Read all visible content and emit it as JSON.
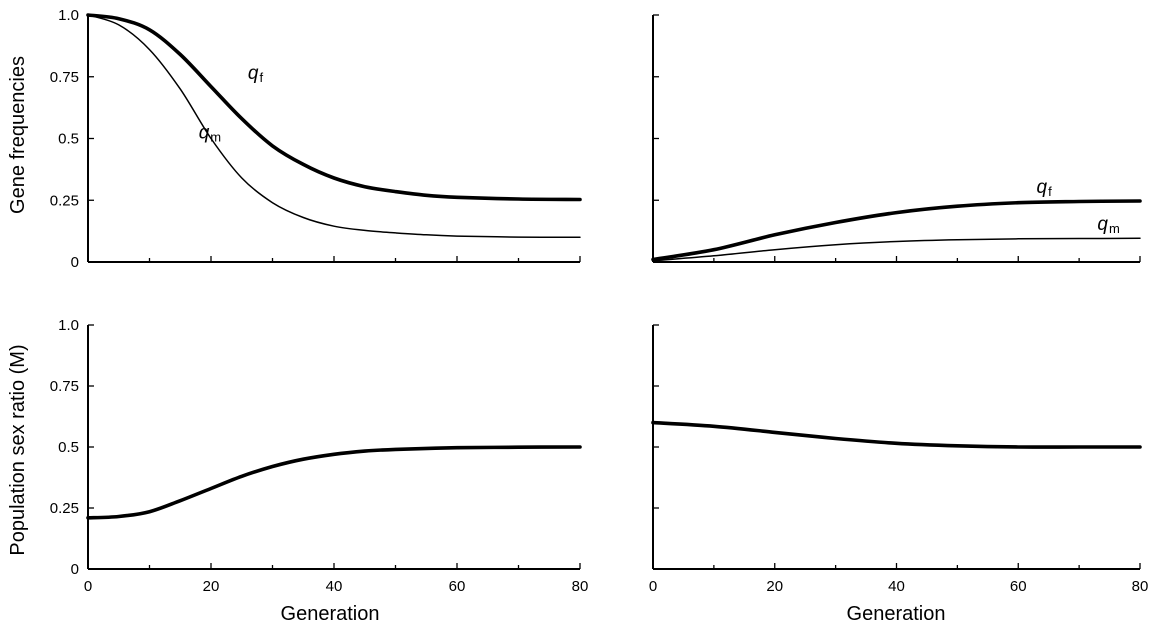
{
  "figure": {
    "ylabel_top": "Gene frequencies",
    "ylabel_bottom": "Population sex ratio (M)",
    "xlabel": "Generation"
  },
  "chart_data": [
    {
      "type": "line",
      "panel": "top-left",
      "title": "",
      "xlabel": "",
      "ylabel": "Gene frequencies",
      "xlim": [
        0,
        80
      ],
      "ylim": [
        0,
        1.0
      ],
      "x_ticks": [
        0,
        20,
        40,
        60,
        80
      ],
      "y_ticks": [
        "0",
        "0.25",
        "0.5",
        "0.75",
        "1.0"
      ],
      "show_x_tick_labels": false,
      "show_y_tick_labels": true,
      "grid": false,
      "series": [
        {
          "name": "q_f",
          "label_main": "q",
          "label_sub": "f",
          "style": "thick",
          "label_at": [
            26,
            0.74
          ],
          "points": [
            [
              0,
              1.0
            ],
            [
              5,
              0.985
            ],
            [
              10,
              0.94
            ],
            [
              15,
              0.84
            ],
            [
              20,
              0.71
            ],
            [
              25,
              0.58
            ],
            [
              30,
              0.47
            ],
            [
              35,
              0.395
            ],
            [
              40,
              0.34
            ],
            [
              45,
              0.305
            ],
            [
              50,
              0.285
            ],
            [
              55,
              0.27
            ],
            [
              60,
              0.262
            ],
            [
              70,
              0.255
            ],
            [
              80,
              0.253
            ]
          ]
        },
        {
          "name": "q_m",
          "label_main": "q",
          "label_sub": "m",
          "style": "thin",
          "label_at": [
            18,
            0.5
          ],
          "points": [
            [
              0,
              1.0
            ],
            [
              5,
              0.96
            ],
            [
              10,
              0.86
            ],
            [
              15,
              0.7
            ],
            [
              20,
              0.5
            ],
            [
              25,
              0.34
            ],
            [
              30,
              0.24
            ],
            [
              35,
              0.18
            ],
            [
              40,
              0.145
            ],
            [
              45,
              0.128
            ],
            [
              50,
              0.118
            ],
            [
              55,
              0.11
            ],
            [
              60,
              0.105
            ],
            [
              70,
              0.101
            ],
            [
              80,
              0.1
            ]
          ]
        }
      ]
    },
    {
      "type": "line",
      "panel": "top-right",
      "title": "",
      "xlabel": "",
      "ylabel": "",
      "xlim": [
        0,
        80
      ],
      "ylim": [
        0,
        1.0
      ],
      "x_ticks": [
        0,
        20,
        40,
        60,
        80
      ],
      "y_ticks": [
        "0",
        "0.25",
        "0.5",
        "0.75",
        "1.0"
      ],
      "show_x_tick_labels": false,
      "show_y_tick_labels": false,
      "grid": false,
      "series": [
        {
          "name": "q_f",
          "label_main": "q",
          "label_sub": "f",
          "style": "thick",
          "label_at": [
            63,
            0.28
          ],
          "points": [
            [
              0,
              0.01
            ],
            [
              10,
              0.05
            ],
            [
              20,
              0.11
            ],
            [
              30,
              0.16
            ],
            [
              40,
              0.2
            ],
            [
              50,
              0.226
            ],
            [
              60,
              0.24
            ],
            [
              70,
              0.245
            ],
            [
              80,
              0.247
            ]
          ]
        },
        {
          "name": "q_m",
          "label_main": "q",
          "label_sub": "m",
          "style": "thin",
          "label_at": [
            73,
            0.13
          ],
          "points": [
            [
              0,
              0.005
            ],
            [
              10,
              0.025
            ],
            [
              20,
              0.05
            ],
            [
              30,
              0.07
            ],
            [
              40,
              0.083
            ],
            [
              50,
              0.09
            ],
            [
              60,
              0.094
            ],
            [
              70,
              0.095
            ],
            [
              80,
              0.096
            ]
          ]
        }
      ]
    },
    {
      "type": "line",
      "panel": "bottom-left",
      "title": "",
      "xlabel": "Generation",
      "ylabel": "Population sex ratio (M)",
      "xlim": [
        0,
        80
      ],
      "ylim": [
        0,
        1.0
      ],
      "x_ticks": [
        "0",
        "20",
        "40",
        "60",
        "80"
      ],
      "y_ticks": [
        "0",
        "0.25",
        "0.5",
        "0.75",
        "1.0"
      ],
      "show_x_tick_labels": true,
      "show_y_tick_labels": true,
      "grid": false,
      "series": [
        {
          "name": "M",
          "style": "thick",
          "points": [
            [
              0,
              0.21
            ],
            [
              5,
              0.215
            ],
            [
              10,
              0.235
            ],
            [
              15,
              0.28
            ],
            [
              20,
              0.33
            ],
            [
              25,
              0.38
            ],
            [
              30,
              0.42
            ],
            [
              35,
              0.45
            ],
            [
              40,
              0.47
            ],
            [
              45,
              0.483
            ],
            [
              50,
              0.49
            ],
            [
              60,
              0.497
            ],
            [
              70,
              0.499
            ],
            [
              80,
              0.5
            ]
          ]
        }
      ]
    },
    {
      "type": "line",
      "panel": "bottom-right",
      "title": "",
      "xlabel": "Generation",
      "ylabel": "",
      "xlim": [
        0,
        80
      ],
      "ylim": [
        0,
        1.0
      ],
      "x_ticks": [
        "0",
        "20",
        "40",
        "60",
        "80"
      ],
      "y_ticks": [
        "0",
        "0.25",
        "0.5",
        "0.75",
        "1.0"
      ],
      "show_x_tick_labels": true,
      "show_y_tick_labels": false,
      "grid": false,
      "series": [
        {
          "name": "M",
          "style": "thick",
          "points": [
            [
              0,
              0.6
            ],
            [
              10,
              0.585
            ],
            [
              20,
              0.56
            ],
            [
              30,
              0.535
            ],
            [
              40,
              0.515
            ],
            [
              50,
              0.505
            ],
            [
              60,
              0.5
            ],
            [
              70,
              0.5
            ],
            [
              80,
              0.5
            ]
          ]
        }
      ]
    }
  ]
}
